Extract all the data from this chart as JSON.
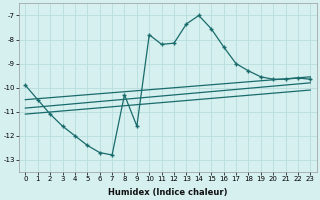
{
  "xlabel": "Humidex (Indice chaleur)",
  "bg_color": "#d6f0f0",
  "grid_color": "#b8dede",
  "line_color": "#1a6b6b",
  "xlim": [
    -0.5,
    23.5
  ],
  "ylim": [
    -13.5,
    -6.5
  ],
  "yticks": [
    -13,
    -12,
    -11,
    -10,
    -9,
    -8,
    -7
  ],
  "xticks": [
    0,
    1,
    2,
    3,
    4,
    5,
    6,
    7,
    8,
    9,
    10,
    11,
    12,
    13,
    14,
    15,
    16,
    17,
    18,
    19,
    20,
    21,
    22,
    23
  ],
  "series1_x": [
    0,
    1,
    2,
    3,
    4,
    5,
    6,
    7,
    8,
    9,
    10,
    11,
    12,
    13,
    14,
    15,
    16,
    17,
    18,
    19,
    20,
    21,
    22,
    23
  ],
  "series1_y": [
    -9.9,
    -10.5,
    -11.1,
    -11.6,
    -12.0,
    -12.4,
    -12.7,
    -12.8,
    -10.3,
    -11.6,
    -7.8,
    -8.2,
    -8.15,
    -7.35,
    -7.0,
    -7.55,
    -8.3,
    -9.0,
    -9.3,
    -9.55,
    -9.65,
    -9.65,
    -9.6,
    -9.65
  ],
  "series2_x": [
    0,
    23
  ],
  "series2_y": [
    -10.5,
    -9.55
  ],
  "series3_x": [
    0,
    23
  ],
  "series3_y": [
    -10.85,
    -9.8
  ],
  "series4_x": [
    0,
    23
  ],
  "series4_y": [
    -11.1,
    -10.1
  ]
}
